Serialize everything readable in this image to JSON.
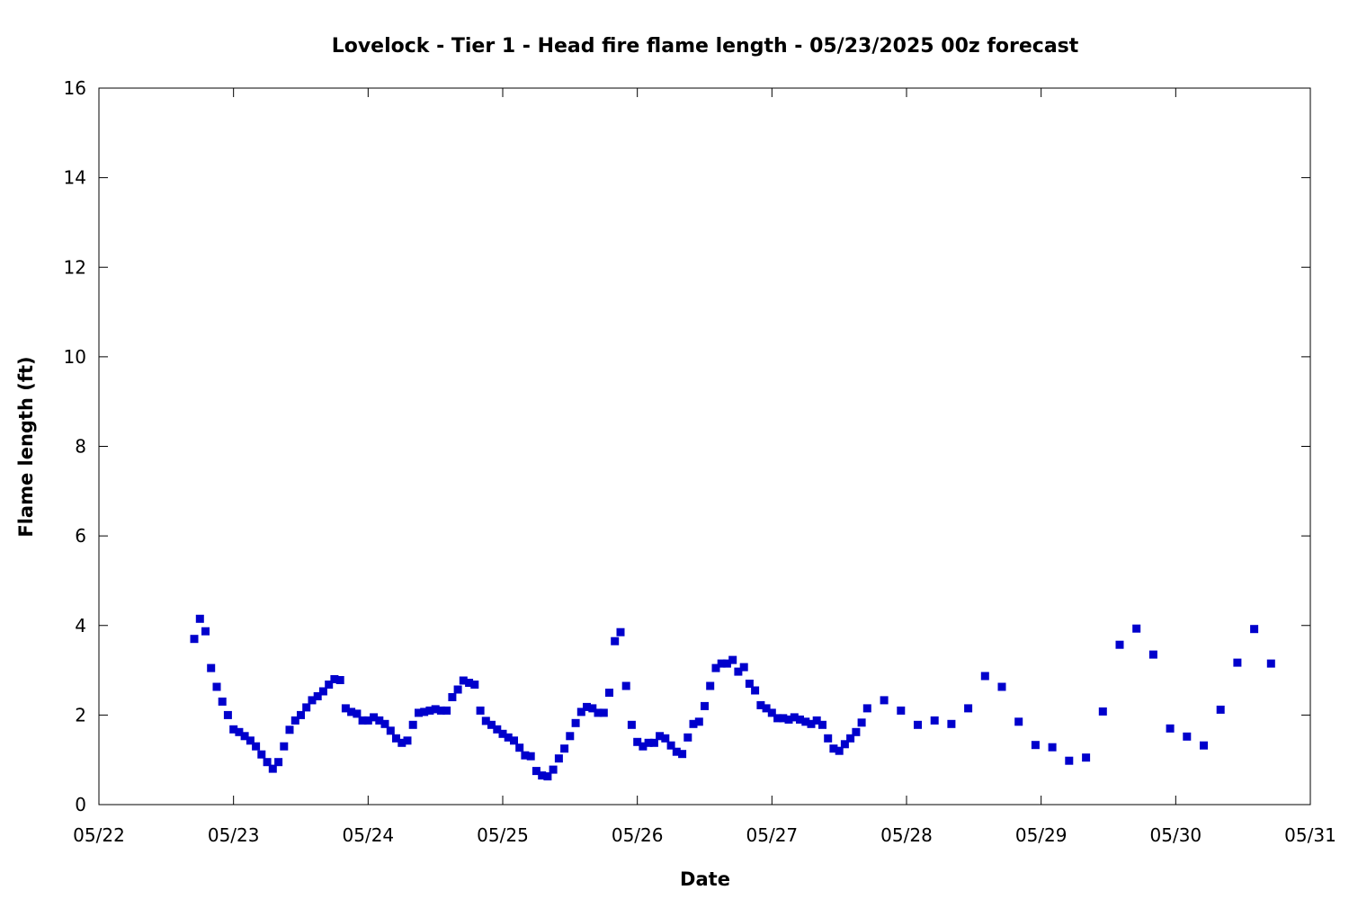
{
  "chart_data": {
    "type": "scatter",
    "title": "Lovelock - Tier 1 - Head fire flame length - 05/23/2025 00z forecast",
    "xlabel": "Date",
    "ylabel": "Flame length (ft)",
    "x_ticks": [
      "05/22",
      "05/23",
      "05/24",
      "05/25",
      "05/26",
      "05/27",
      "05/28",
      "05/29",
      "05/30",
      "05/31"
    ],
    "y_ticks": [
      "0",
      "2",
      "4",
      "6",
      "8",
      "10",
      "12",
      "14",
      "16"
    ],
    "xlim": [
      "2025-05-22 00:00",
      "2025-05-31 00:00"
    ],
    "ylim": [
      0,
      16
    ],
    "grid": false,
    "marker_color": "#0000cc",
    "series": [
      {
        "points": [
          [
            "2025-05-22 17:00",
            3.7
          ],
          [
            "2025-05-22 18:00",
            4.15
          ],
          [
            "2025-05-22 19:00",
            3.87
          ],
          [
            "2025-05-22 20:00",
            3.05
          ],
          [
            "2025-05-22 21:00",
            2.63
          ],
          [
            "2025-05-22 22:00",
            2.3
          ],
          [
            "2025-05-22 23:00",
            2.0
          ],
          [
            "2025-05-23 00:00",
            1.68
          ],
          [
            "2025-05-23 01:00",
            1.62
          ],
          [
            "2025-05-23 02:00",
            1.53
          ],
          [
            "2025-05-23 03:00",
            1.43
          ],
          [
            "2025-05-23 04:00",
            1.3
          ],
          [
            "2025-05-23 05:00",
            1.12
          ],
          [
            "2025-05-23 06:00",
            0.95
          ],
          [
            "2025-05-23 07:00",
            0.8
          ],
          [
            "2025-05-23 08:00",
            0.95
          ],
          [
            "2025-05-23 09:00",
            1.3
          ],
          [
            "2025-05-23 10:00",
            1.67
          ],
          [
            "2025-05-23 11:00",
            1.88
          ],
          [
            "2025-05-23 12:00",
            2.0
          ],
          [
            "2025-05-23 13:00",
            2.17
          ],
          [
            "2025-05-23 14:00",
            2.33
          ],
          [
            "2025-05-23 15:00",
            2.42
          ],
          [
            "2025-05-23 16:00",
            2.53
          ],
          [
            "2025-05-23 17:00",
            2.68
          ],
          [
            "2025-05-23 18:00",
            2.8
          ],
          [
            "2025-05-23 19:00",
            2.78
          ],
          [
            "2025-05-23 20:00",
            2.15
          ],
          [
            "2025-05-23 21:00",
            2.07
          ],
          [
            "2025-05-23 22:00",
            2.03
          ],
          [
            "2025-05-23 23:00",
            1.88
          ],
          [
            "2025-05-24 00:00",
            1.88
          ],
          [
            "2025-05-24 01:00",
            1.95
          ],
          [
            "2025-05-24 02:00",
            1.88
          ],
          [
            "2025-05-24 03:00",
            1.8
          ],
          [
            "2025-05-24 04:00",
            1.65
          ],
          [
            "2025-05-24 05:00",
            1.48
          ],
          [
            "2025-05-24 06:00",
            1.38
          ],
          [
            "2025-05-24 07:00",
            1.43
          ],
          [
            "2025-05-24 08:00",
            1.78
          ],
          [
            "2025-05-24 09:00",
            2.05
          ],
          [
            "2025-05-24 10:00",
            2.07
          ],
          [
            "2025-05-24 11:00",
            2.1
          ],
          [
            "2025-05-24 12:00",
            2.13
          ],
          [
            "2025-05-24 13:00",
            2.1
          ],
          [
            "2025-05-24 14:00",
            2.1
          ],
          [
            "2025-05-24 15:00",
            2.4
          ],
          [
            "2025-05-24 16:00",
            2.57
          ],
          [
            "2025-05-24 17:00",
            2.77
          ],
          [
            "2025-05-24 18:00",
            2.72
          ],
          [
            "2025-05-24 19:00",
            2.68
          ],
          [
            "2025-05-24 20:00",
            2.1
          ],
          [
            "2025-05-24 21:00",
            1.87
          ],
          [
            "2025-05-24 22:00",
            1.78
          ],
          [
            "2025-05-24 23:00",
            1.68
          ],
          [
            "2025-05-25 00:00",
            1.58
          ],
          [
            "2025-05-25 01:00",
            1.5
          ],
          [
            "2025-05-25 02:00",
            1.43
          ],
          [
            "2025-05-25 03:00",
            1.27
          ],
          [
            "2025-05-25 04:00",
            1.1
          ],
          [
            "2025-05-25 05:00",
            1.08
          ],
          [
            "2025-05-25 06:00",
            0.75
          ],
          [
            "2025-05-25 07:00",
            0.65
          ],
          [
            "2025-05-25 08:00",
            0.63
          ],
          [
            "2025-05-25 09:00",
            0.78
          ],
          [
            "2025-05-25 10:00",
            1.03
          ],
          [
            "2025-05-25 11:00",
            1.25
          ],
          [
            "2025-05-25 12:00",
            1.53
          ],
          [
            "2025-05-25 13:00",
            1.82
          ],
          [
            "2025-05-25 14:00",
            2.07
          ],
          [
            "2025-05-25 15:00",
            2.18
          ],
          [
            "2025-05-25 16:00",
            2.15
          ],
          [
            "2025-05-25 17:00",
            2.05
          ],
          [
            "2025-05-25 18:00",
            2.05
          ],
          [
            "2025-05-25 19:00",
            2.5
          ],
          [
            "2025-05-25 20:00",
            3.65
          ],
          [
            "2025-05-25 21:00",
            3.85
          ],
          [
            "2025-05-25 22:00",
            2.65
          ],
          [
            "2025-05-25 23:00",
            1.78
          ],
          [
            "2025-05-26 00:00",
            1.4
          ],
          [
            "2025-05-26 01:00",
            1.3
          ],
          [
            "2025-05-26 02:00",
            1.38
          ],
          [
            "2025-05-26 03:00",
            1.38
          ],
          [
            "2025-05-26 04:00",
            1.53
          ],
          [
            "2025-05-26 05:00",
            1.48
          ],
          [
            "2025-05-26 06:00",
            1.32
          ],
          [
            "2025-05-26 07:00",
            1.18
          ],
          [
            "2025-05-26 08:00",
            1.13
          ],
          [
            "2025-05-26 09:00",
            1.5
          ],
          [
            "2025-05-26 10:00",
            1.8
          ],
          [
            "2025-05-26 11:00",
            1.85
          ],
          [
            "2025-05-26 12:00",
            2.2
          ],
          [
            "2025-05-26 13:00",
            2.65
          ],
          [
            "2025-05-26 14:00",
            3.05
          ],
          [
            "2025-05-26 15:00",
            3.15
          ],
          [
            "2025-05-26 16:00",
            3.15
          ],
          [
            "2025-05-26 17:00",
            3.23
          ],
          [
            "2025-05-26 18:00",
            2.97
          ],
          [
            "2025-05-26 19:00",
            3.07
          ],
          [
            "2025-05-26 20:00",
            2.7
          ],
          [
            "2025-05-26 21:00",
            2.55
          ],
          [
            "2025-05-26 22:00",
            2.22
          ],
          [
            "2025-05-26 23:00",
            2.15
          ],
          [
            "2025-05-27 00:00",
            2.05
          ],
          [
            "2025-05-27 01:00",
            1.93
          ],
          [
            "2025-05-27 02:00",
            1.93
          ],
          [
            "2025-05-27 03:00",
            1.9
          ],
          [
            "2025-05-27 04:00",
            1.95
          ],
          [
            "2025-05-27 05:00",
            1.9
          ],
          [
            "2025-05-27 06:00",
            1.85
          ],
          [
            "2025-05-27 07:00",
            1.8
          ],
          [
            "2025-05-27 08:00",
            1.88
          ],
          [
            "2025-05-27 09:00",
            1.78
          ],
          [
            "2025-05-27 10:00",
            1.48
          ],
          [
            "2025-05-27 11:00",
            1.25
          ],
          [
            "2025-05-27 12:00",
            1.2
          ],
          [
            "2025-05-27 13:00",
            1.35
          ],
          [
            "2025-05-27 14:00",
            1.48
          ],
          [
            "2025-05-27 15:00",
            1.62
          ],
          [
            "2025-05-27 16:00",
            1.83
          ],
          [
            "2025-05-27 17:00",
            2.15
          ],
          [
            "2025-05-27 20:00",
            2.33
          ],
          [
            "2025-05-27 23:00",
            2.1
          ],
          [
            "2025-05-28 02:00",
            1.78
          ],
          [
            "2025-05-28 05:00",
            1.88
          ],
          [
            "2025-05-28 08:00",
            1.8
          ],
          [
            "2025-05-28 11:00",
            2.15
          ],
          [
            "2025-05-28 14:00",
            2.87
          ],
          [
            "2025-05-28 17:00",
            2.63
          ],
          [
            "2025-05-28 20:00",
            1.85
          ],
          [
            "2025-05-28 23:00",
            1.33
          ],
          [
            "2025-05-29 02:00",
            1.28
          ],
          [
            "2025-05-29 05:00",
            0.98
          ],
          [
            "2025-05-29 08:00",
            1.05
          ],
          [
            "2025-05-29 11:00",
            2.08
          ],
          [
            "2025-05-29 14:00",
            3.57
          ],
          [
            "2025-05-29 17:00",
            3.93
          ],
          [
            "2025-05-29 20:00",
            3.35
          ],
          [
            "2025-05-29 23:00",
            1.7
          ],
          [
            "2025-05-30 02:00",
            1.52
          ],
          [
            "2025-05-30 05:00",
            1.32
          ],
          [
            "2025-05-30 08:00",
            2.12
          ],
          [
            "2025-05-30 11:00",
            3.17
          ],
          [
            "2025-05-30 14:00",
            3.92
          ],
          [
            "2025-05-30 17:00",
            3.15
          ]
        ]
      }
    ]
  }
}
